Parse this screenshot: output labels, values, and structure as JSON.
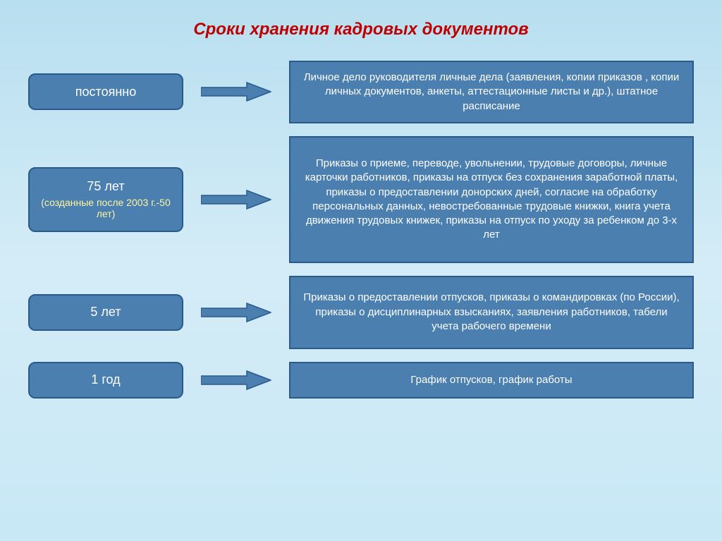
{
  "title": "Сроки хранения кадровых документов",
  "arrow_fill": "#4a7fb0",
  "arrow_stroke": "#2a5a8a",
  "box_fill": "#4a7fb0",
  "box_border": "#2a5a8a",
  "title_color": "#c00000",
  "sub_label_color": "#fff59d",
  "rows": [
    {
      "label": "постоянно",
      "sub": "",
      "left_height": 52,
      "right_height": 88,
      "desc": "Личное дело руководителя личные дела (заявления, копии приказов , копии личных документов, анкеты, аттестационные листы и др.),  штатное расписание"
    },
    {
      "label": "75 лет",
      "sub": "(созданные после 2003 г.-50 лет)",
      "left_height": 92,
      "right_height": 180,
      "desc": "Приказы о приеме, переводе, увольнении, трудовые договоры, личные  карточки работников, приказы  на отпуск без сохранения заработной платы, приказы о предоставлении донорских дней, согласие на обработку персональных данных, невостребованные трудовые книжки, книга учета движения  трудовых книжек, приказы на отпуск по уходу за  ребенком до 3-х лет"
    },
    {
      "label": "5 лет",
      "sub": "",
      "left_height": 52,
      "right_height": 104,
      "desc": "Приказы о предоставлении отпусков, приказы о командировках (по России), приказы о дисциплинарных взысканиях, заявления работников, табели учета рабочего времени"
    },
    {
      "label": "1 год",
      "sub": "",
      "left_height": 52,
      "right_height": 52,
      "desc": "График отпусков,  график работы"
    }
  ]
}
